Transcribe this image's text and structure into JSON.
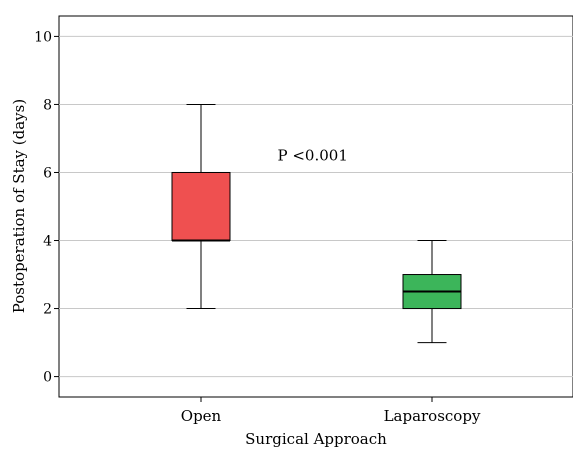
{
  "chart_data": {
    "type": "box",
    "xlabel": "Surgical Approach",
    "ylabel": "Postoperation of Stay (days)",
    "ylim": [
      -0.6,
      10.6
    ],
    "yticks": [
      0,
      2,
      4,
      6,
      8,
      10
    ],
    "grid": "horizontal",
    "categories": [
      "Open",
      "Laparoscopy"
    ],
    "boxes": [
      {
        "category": "Open",
        "min": 2,
        "q1": 4,
        "median": 4,
        "q3": 6,
        "max": 8,
        "color": "#ef5050"
      },
      {
        "category": "Laparoscopy",
        "min": 1,
        "q1": 2,
        "median": 2.5,
        "q3": 3,
        "max": 4,
        "color": "#3cb55a"
      }
    ],
    "annotations": [
      {
        "text": "P <0.001",
        "x": "between-categories",
        "y": 6.5
      }
    ]
  }
}
